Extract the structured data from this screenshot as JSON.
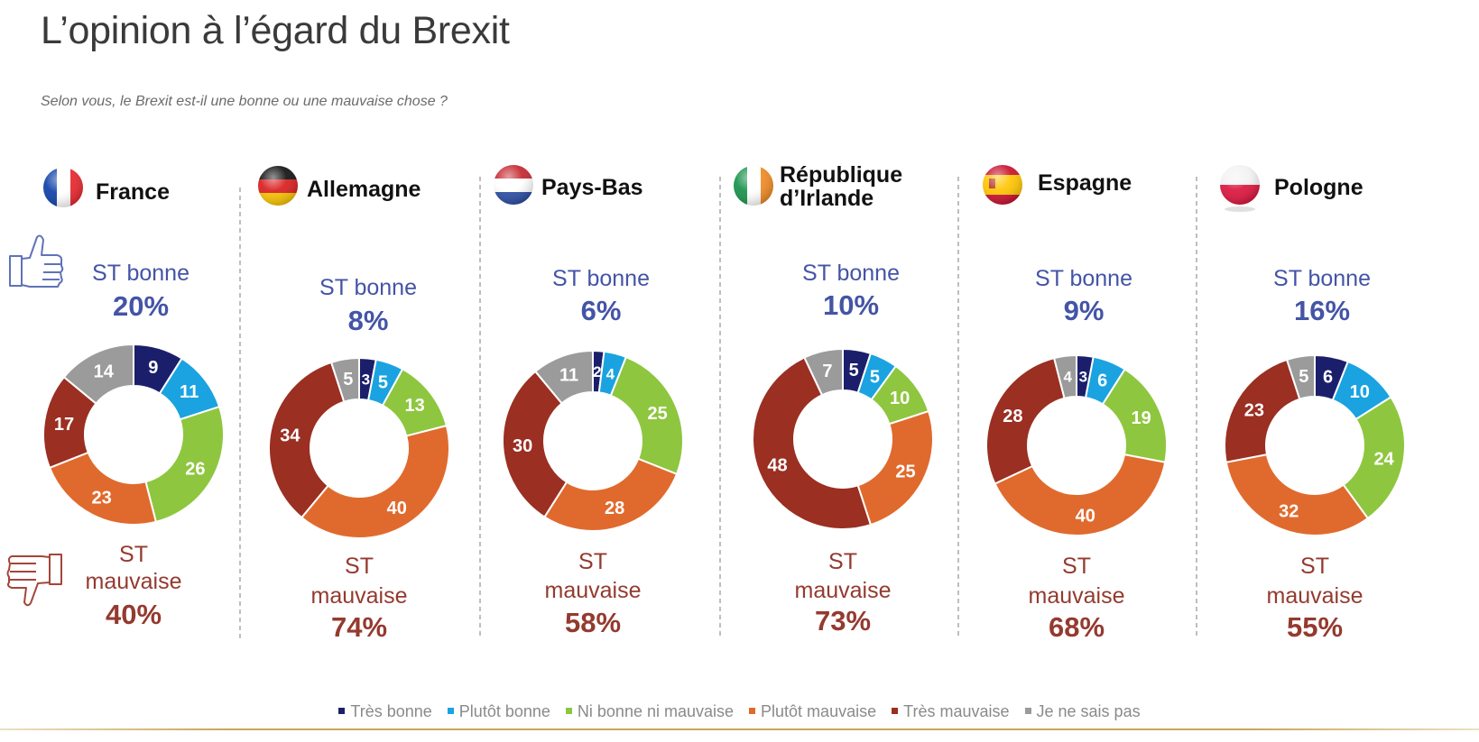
{
  "title": "L’opinion à l’égard du Brexit",
  "subtitle": "Selon vous, le Brexit est-il une bonne ou une mauvaise chose ?",
  "colors": {
    "tres_bonne": "#1b1f6b",
    "plutot_bonne": "#1aa3e0",
    "ni_bonne": "#8ec63f",
    "plutot_mauvaise": "#e06a2d",
    "tres_mauvaise": "#9a2f22",
    "nsp": "#9b9b9b",
    "good_text": "#4454a6",
    "bad_text": "#943a2f"
  },
  "legend": [
    {
      "label": "Très bonne",
      "color": "#1b1f6b"
    },
    {
      "label": "Plutôt bonne",
      "color": "#1aa3e0"
    },
    {
      "label": "Ni bonne ni mauvaise",
      "color": "#8ec63f"
    },
    {
      "label": "Plutôt mauvaise",
      "color": "#e06a2d"
    },
    {
      "label": "Très mauvaise",
      "color": "#9a2f22"
    },
    {
      "label": "Je ne sais pas",
      "color": "#9b9b9b"
    }
  ],
  "chart_data": {
    "type": "donut",
    "title": "L’opinion à l’égard du Brexit",
    "subtitle": "Selon vous, le Brexit est-il une bonne ou une mauvaise chose ?",
    "categories": [
      "Très bonne",
      "Plutôt bonne",
      "Ni bonne ni mauvaise",
      "Plutôt mauvaise",
      "Très mauvaise",
      "Je ne sais pas"
    ],
    "legend_position": "bottom",
    "series": [
      {
        "name": "France",
        "flag": "france-flag-icon",
        "values": [
          9,
          11,
          26,
          23,
          17,
          14
        ],
        "st_bonne_label": "ST bonne",
        "st_bonne": "20%",
        "st_mauvaise_label": [
          "ST",
          "mauvaise"
        ],
        "st_mauvaise": "40%"
      },
      {
        "name": "Allemagne",
        "flag": "germany-flag-icon",
        "values": [
          3,
          5,
          13,
          40,
          34,
          5
        ],
        "st_bonne_label": "ST bonne",
        "st_bonne": "8%",
        "st_mauvaise_label": [
          "ST",
          "mauvaise"
        ],
        "st_mauvaise": "74%"
      },
      {
        "name": "Pays-Bas",
        "flag": "netherlands-flag-icon",
        "values": [
          2,
          4,
          25,
          28,
          30,
          11
        ],
        "st_bonne_label": "ST bonne",
        "st_bonne": "6%",
        "st_mauvaise_label": [
          "ST",
          "mauvaise"
        ],
        "st_mauvaise": "58%"
      },
      {
        "name": "République d’Irlande",
        "name_lines": [
          "République",
          "d’Irlande"
        ],
        "flag": "ireland-flag-icon",
        "values": [
          5,
          5,
          10,
          25,
          48,
          7
        ],
        "st_bonne_label": "ST bonne",
        "st_bonne": "10%",
        "st_mauvaise_label": [
          "ST",
          "mauvaise"
        ],
        "st_mauvaise": "73%"
      },
      {
        "name": "Espagne",
        "flag": "spain-flag-icon",
        "values": [
          3,
          6,
          19,
          40,
          28,
          4
        ],
        "st_bonne_label": "ST bonne",
        "st_bonne": "9%",
        "st_mauvaise_label": [
          "ST",
          "mauvaise"
        ],
        "st_mauvaise": "68%"
      },
      {
        "name": "Pologne",
        "flag": "poland-flag-icon",
        "values": [
          6,
          10,
          24,
          32,
          23,
          5
        ],
        "st_bonne_label": "ST bonne",
        "st_bonne": "16%",
        "st_mauvaise_label": [
          "ST",
          "mauvaise"
        ],
        "st_mauvaise": "55%"
      }
    ]
  }
}
